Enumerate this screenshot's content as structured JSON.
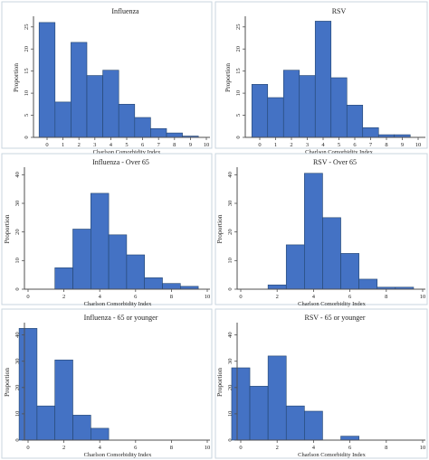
{
  "chart_data": [
    {
      "type": "bar",
      "title": "Influenza",
      "xlabel": "Charlson Comorbidity Index",
      "ylabel": "Proportion",
      "x_ticks": [
        "0",
        "1",
        "2",
        "3",
        "4",
        "5",
        "6",
        "7",
        "8",
        "9",
        "10"
      ],
      "y_ticks": [
        "0",
        "5",
        "10",
        "15",
        "20",
        "25"
      ],
      "ylim": [
        0,
        27
      ],
      "categories": [
        "0",
        "1",
        "2",
        "3",
        "4",
        "5",
        "6",
        "7",
        "8",
        "9"
      ],
      "values": [
        26,
        8,
        21.5,
        14,
        15.2,
        7.5,
        4.5,
        2,
        1,
        0.3
      ]
    },
    {
      "type": "bar",
      "title": "RSV",
      "xlabel": "Charlson Comorbidity Index",
      "ylabel": "Proportion",
      "x_ticks": [
        "0",
        "1",
        "2",
        "3",
        "4",
        "5",
        "6",
        "7",
        "8",
        "9",
        "10"
      ],
      "y_ticks": [
        "0",
        "5",
        "10",
        "15",
        "20",
        "25"
      ],
      "ylim": [
        0,
        27
      ],
      "categories": [
        "0",
        "1",
        "2",
        "3",
        "4",
        "5",
        "6",
        "7",
        "8",
        "9"
      ],
      "values": [
        12,
        9,
        15.2,
        14,
        26.3,
        13.5,
        7.3,
        2.2,
        0.6,
        0.6
      ]
    },
    {
      "type": "bar",
      "title": "Influenza - Over 65",
      "xlabel": "Charlson Comorbidity Index",
      "ylabel": "Proportion",
      "x_ticks": [
        "0",
        "2",
        "4",
        "6",
        "8",
        "10"
      ],
      "y_ticks": [
        "0",
        "10",
        "20",
        "30",
        "40"
      ],
      "ylim": [
        0,
        42
      ],
      "categories": [
        "2",
        "3",
        "4",
        "5",
        "6",
        "7",
        "8",
        "9"
      ],
      "values": [
        7.5,
        21,
        33.5,
        19,
        12,
        4,
        2,
        1
      ]
    },
    {
      "type": "bar",
      "title": "RSV - Over 65",
      "xlabel": "Charlson Comorbidity Index",
      "ylabel": "Proportion",
      "x_ticks": [
        "0",
        "2",
        "4",
        "6",
        "8",
        "10"
      ],
      "y_ticks": [
        "0",
        "10",
        "20",
        "30",
        "40"
      ],
      "ylim": [
        0,
        42
      ],
      "categories": [
        "2",
        "3",
        "4",
        "5",
        "6",
        "7",
        "8",
        "9"
      ],
      "values": [
        1.5,
        15.5,
        40.5,
        25,
        12.5,
        3.5,
        0.7,
        0.7
      ]
    },
    {
      "type": "bar",
      "title": "Influenza - 65 or younger",
      "xlabel": "Charlson Comorbidity Index",
      "ylabel": "Proportion",
      "x_ticks": [
        "0",
        "2",
        "4",
        "6",
        "8",
        "10"
      ],
      "y_ticks": [
        "0",
        "10",
        "20",
        "30",
        "40"
      ],
      "ylim": [
        0,
        44
      ],
      "categories": [
        "0",
        "1",
        "2",
        "3",
        "4"
      ],
      "values": [
        42.5,
        13,
        30.5,
        9.5,
        4.5
      ]
    },
    {
      "type": "bar",
      "title": "RSV - 65 or younger",
      "xlabel": "Charlson Comorbidity Index",
      "ylabel": "Proportion",
      "x_ticks": [
        "0",
        "2",
        "4",
        "6",
        "8",
        "10"
      ],
      "y_ticks": [
        "0",
        "10",
        "20",
        "30",
        "40"
      ],
      "ylim": [
        0,
        44
      ],
      "categories": [
        "0",
        "1",
        "2",
        "3",
        "4",
        "5",
        "6"
      ],
      "values": [
        27.5,
        20.5,
        32,
        13,
        11,
        0,
        1.5
      ]
    }
  ],
  "colors": {
    "background": "#ffffff",
    "panel_fill": "#ffffff",
    "panel_border": "#c9d6df",
    "bar_fill": "#4472c4",
    "bar_stroke": "#24456f",
    "axis": "#4f4f4f",
    "text": "#222222"
  }
}
